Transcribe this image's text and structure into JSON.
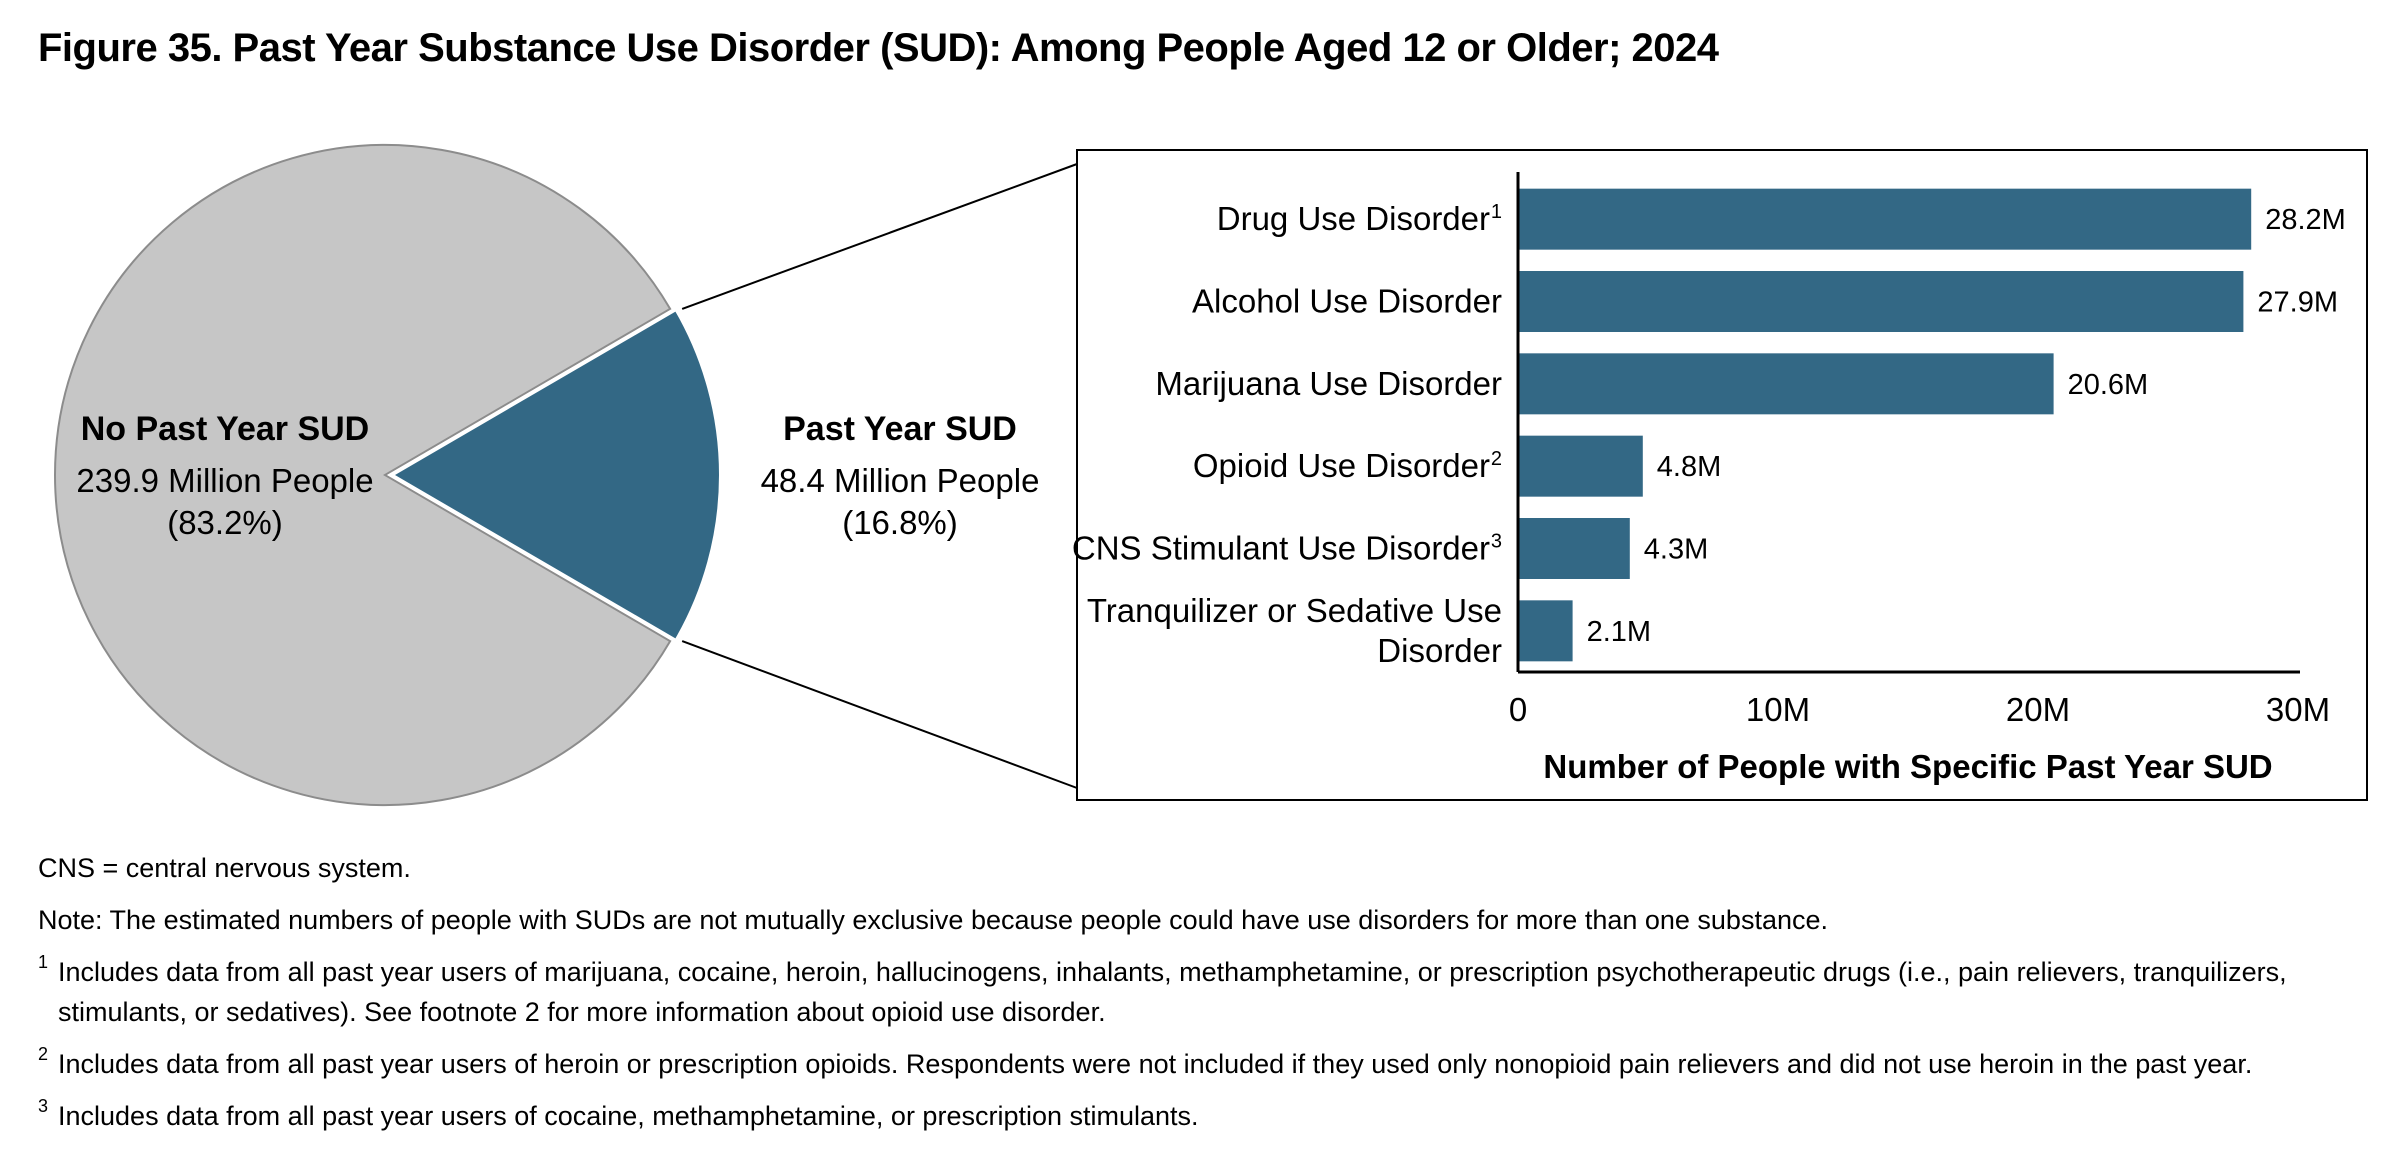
{
  "title": "Figure 35. Past Year Substance Use Disorder (SUD): Among People Aged 12 or Older; 2024",
  "colors": {
    "pie_no_sud": "#c6c6c6",
    "pie_sud": "#336885",
    "bar": "#336885",
    "pie_outline": "#8c8c8c"
  },
  "chart_data": [
    {
      "type": "pie",
      "title": "",
      "slices": [
        {
          "name": "No Past Year SUD",
          "value": 239.9,
          "value_label": "239.9 Million People",
          "percent": 83.2,
          "percent_label": "(83.2%)"
        },
        {
          "name": "Past Year SUD",
          "value": 48.4,
          "value_label": "48.4 Million People",
          "percent": 16.8,
          "percent_label": "(16.8%)"
        }
      ]
    },
    {
      "type": "bar",
      "orientation": "horizontal",
      "title": "",
      "xlabel": "Number of People with Specific Past Year SUD",
      "ylabel": "",
      "xlim": [
        0,
        30
      ],
      "xticks": [
        {
          "value": 0,
          "label": "0"
        },
        {
          "value": 10,
          "label": "10M"
        },
        {
          "value": 20,
          "label": "20M"
        },
        {
          "value": 30,
          "label": "30M"
        }
      ],
      "categories": [
        {
          "lines": [
            "Drug Use Disorder"
          ],
          "sup": "1"
        },
        {
          "lines": [
            "Alcohol Use Disorder"
          ],
          "sup": ""
        },
        {
          "lines": [
            "Marijuana Use Disorder"
          ],
          "sup": ""
        },
        {
          "lines": [
            "Opioid Use Disorder"
          ],
          "sup": "2"
        },
        {
          "lines": [
            "CNS Stimulant Use Disorder"
          ],
          "sup": "3"
        },
        {
          "lines": [
            "Tranquilizer or Sedative Use",
            "Disorder"
          ],
          "sup": ""
        }
      ],
      "values": [
        28.2,
        27.9,
        20.6,
        4.8,
        4.3,
        2.1
      ],
      "value_labels": [
        "28.2M",
        "27.9M",
        "20.6M",
        "4.8M",
        "4.3M",
        "2.1M"
      ]
    }
  ],
  "notes": {
    "abbrev": "CNS = central nervous system.",
    "note": "Note: The estimated numbers of people with SUDs are not mutually exclusive because people could have use disorders for more than one substance.",
    "footnotes": [
      {
        "marker": "1",
        "text": "Includes data from all past year users of marijuana, cocaine, heroin, hallucinogens, inhalants, methamphetamine, or prescription psychotherapeutic drugs (i.e., pain relievers, tranquilizers, stimulants, or sedatives). See footnote 2 for more information about opioid use disorder."
      },
      {
        "marker": "2",
        "text": "Includes data from all past year users of heroin or prescription opioids. Respondents were not included if they used only nonopioid pain relievers and did not use heroin in the past year."
      },
      {
        "marker": "3",
        "text": "Includes data from all past year users of cocaine, methamphetamine, or prescription stimulants."
      }
    ]
  }
}
